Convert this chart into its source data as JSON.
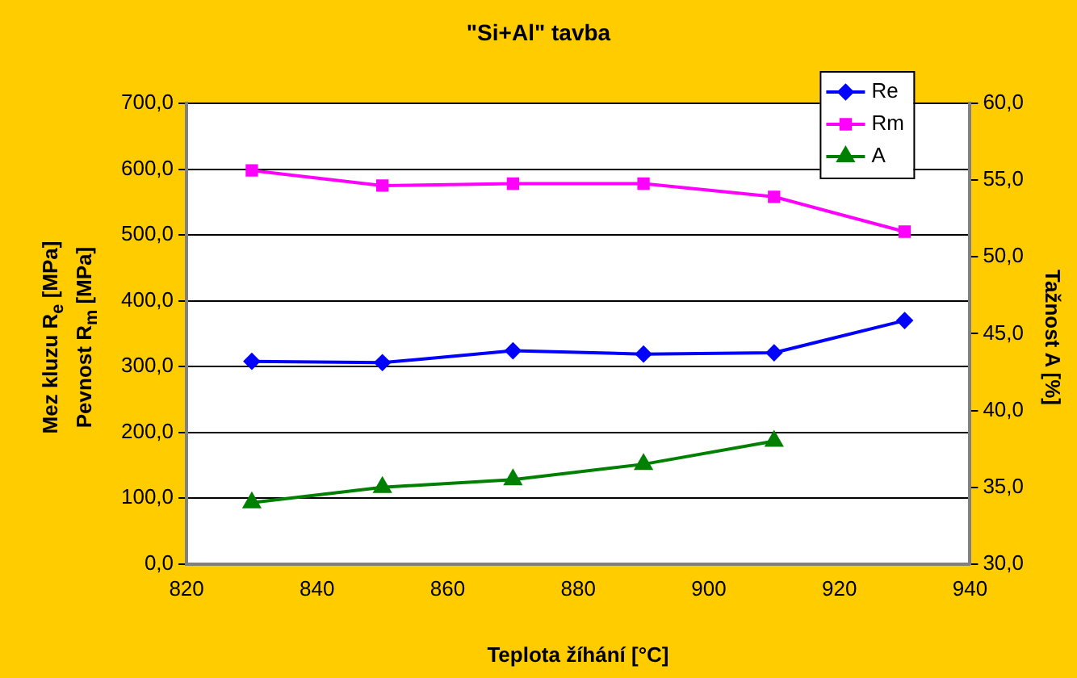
{
  "chart_data": {
    "type": "line",
    "title": "\"Si+Al\" tavba",
    "xlabel": "Teplota žíhání [°C]",
    "ylabel": "Mez kluzu R$_{e}$ [MPa]\nPevnost R$_{m}$ [MPa]",
    "y2label": "Tažnost A [%]",
    "x": [
      830,
      850,
      870,
      890,
      910,
      930
    ],
    "xlim": [
      820,
      940
    ],
    "xticks": [
      820,
      840,
      860,
      880,
      900,
      920,
      940
    ],
    "ylim": [
      0,
      700
    ],
    "yticks": [
      {
        "value": 0,
        "label": "0,0"
      },
      {
        "value": 100,
        "label": "100,0"
      },
      {
        "value": 200,
        "label": "200,0"
      },
      {
        "value": 300,
        "label": "300,0"
      },
      {
        "value": 400,
        "label": "400,0"
      },
      {
        "value": 500,
        "label": "500,0"
      },
      {
        "value": 600,
        "label": "600,0"
      },
      {
        "value": 700,
        "label": "700,0"
      }
    ],
    "y2lim": [
      30,
      60
    ],
    "y2ticks": [
      {
        "value": 30,
        "label": "30,0"
      },
      {
        "value": 35,
        "label": "35,0"
      },
      {
        "value": 40,
        "label": "40,0"
      },
      {
        "value": 45,
        "label": "45,0"
      },
      {
        "value": 50,
        "label": "50,0"
      },
      {
        "value": 55,
        "label": "55,0"
      },
      {
        "value": 60,
        "label": "60,0"
      }
    ],
    "grid": "y",
    "legend": "top right",
    "series": [
      {
        "name": "Re",
        "color": "#0000ff",
        "marker": "diamond",
        "values": [
          308,
          306,
          324,
          319,
          321,
          370
        ]
      },
      {
        "name": "Rm",
        "color": "#ff00ff",
        "marker": "square",
        "values": [
          598,
          575,
          578,
          578,
          558,
          505
        ]
      },
      {
        "name": "A",
        "color": "#008000",
        "marker": "triangle",
        "axis": "y2",
        "values": [
          34,
          35,
          35.5,
          36.5,
          38,
          null
        ]
      }
    ]
  }
}
